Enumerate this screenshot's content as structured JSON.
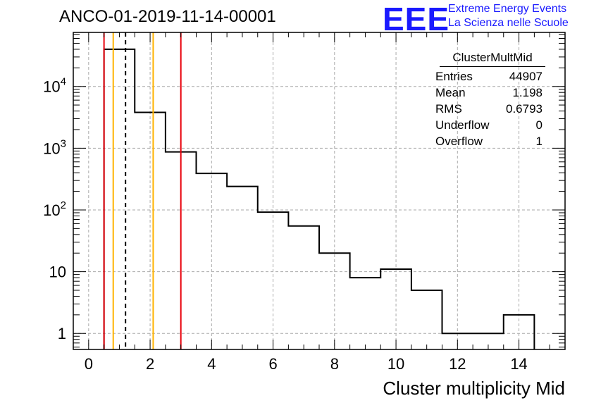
{
  "chart_data": {
    "type": "histogram",
    "title": "ANCO-01-2019-11-14-00001",
    "xlabel": "Cluster multiplicity Mid",
    "ylabel": "",
    "yscale": "log",
    "xlim": [
      -0.5,
      15.5
    ],
    "ylim": [
      0.55,
      75000
    ],
    "x_ticks": [
      0,
      2,
      4,
      6,
      8,
      10,
      12,
      14
    ],
    "y_ticks": [
      {
        "value": 1,
        "label": "1"
      },
      {
        "value": 10,
        "label": "10"
      },
      {
        "value": 100,
        "label": "10",
        "exp": "2"
      },
      {
        "value": 1000,
        "label": "10",
        "exp": "3"
      },
      {
        "value": 10000,
        "label": "10",
        "exp": "4"
      }
    ],
    "grid": true,
    "bin_edges": [
      0.5,
      1.5,
      2.5,
      3.5,
      4.5,
      5.5,
      6.5,
      7.5,
      8.5,
      9.5,
      10.5,
      11.5,
      12.5,
      13.5,
      14.5
    ],
    "bin_values": [
      40000,
      3800,
      870,
      390,
      240,
      92,
      55,
      20,
      8,
      11,
      5,
      1,
      1,
      2
    ],
    "vertical_lines": [
      {
        "x": 0.5,
        "color": "#e8000b",
        "style": "solid"
      },
      {
        "x": 0.8,
        "color": "#ffb300",
        "style": "solid"
      },
      {
        "x": 1.2,
        "color": "#000000",
        "style": "dashed"
      },
      {
        "x": 2.1,
        "color": "#ffb300",
        "style": "solid"
      },
      {
        "x": 3.0,
        "color": "#e8000b",
        "style": "solid"
      }
    ]
  },
  "stats": {
    "title": "ClusterMultMid",
    "rows": [
      {
        "label": "Entries",
        "value": "44907"
      },
      {
        "label": "Mean",
        "value": "1.198"
      },
      {
        "label": "RMS",
        "value": "0.6793"
      },
      {
        "label": "Underflow",
        "value": "0"
      },
      {
        "label": "Overflow",
        "value": "1"
      }
    ]
  },
  "logo": {
    "mark": "EEE",
    "line1": "Extreme Energy Events",
    "line2": "La Scienza nelle Scuole"
  }
}
